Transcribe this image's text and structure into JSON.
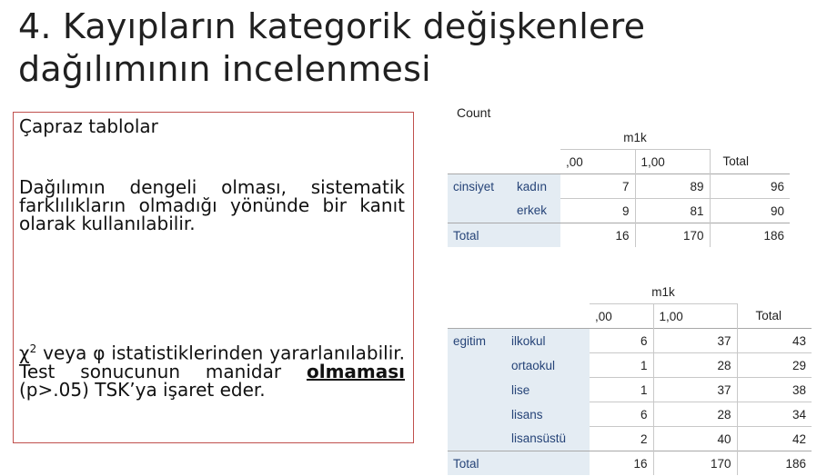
{
  "slide": {
    "title_line1": "4. Kayıpların kategorik değişkenlere",
    "title_line2": "dağılımının incelenmesi",
    "box": {
      "heading": "Çapraz tablolar",
      "para1": "Dağılımın dengeli olması, sistematik farklılıkların olmadığı yönünde bir kanıt olarak kullanılabilir.",
      "para2_chi": "χ",
      "para2_sup": "2",
      "para2_a": " veya φ istatistiklerinden yararlanılabilir. Test sonucunun manidar ",
      "para2_bold": "olmaması",
      "para2_b": " (p>.05) TSK’ya işaret eder."
    }
  },
  "table1": {
    "count_label": "Count",
    "col_var": "m1k",
    "cols": [
      ",00",
      "1,00",
      "Total"
    ],
    "row_var": "cinsiyet",
    "rows": [
      {
        "label": "kadın",
        "values": [
          "7",
          "89",
          "96"
        ]
      },
      {
        "label": "erkek",
        "values": [
          "9",
          "81",
          "90"
        ]
      }
    ],
    "total_label": "Total",
    "totals": [
      "16",
      "170",
      "186"
    ]
  },
  "table2": {
    "col_var": "m1k",
    "cols": [
      ",00",
      "1,00",
      "Total"
    ],
    "row_var": "egitim",
    "rows": [
      {
        "label": "ilkokul",
        "values": [
          "6",
          "37",
          "43"
        ]
      },
      {
        "label": "ortaokul",
        "values": [
          "1",
          "28",
          "29"
        ]
      },
      {
        "label": "lise",
        "values": [
          "1",
          "37",
          "38"
        ]
      },
      {
        "label": "lisans",
        "values": [
          "6",
          "28",
          "34"
        ]
      },
      {
        "label": "lisansüstü",
        "values": [
          "2",
          "40",
          "42"
        ]
      }
    ],
    "total_label": "Total",
    "totals": [
      "16",
      "170",
      "186"
    ]
  }
}
